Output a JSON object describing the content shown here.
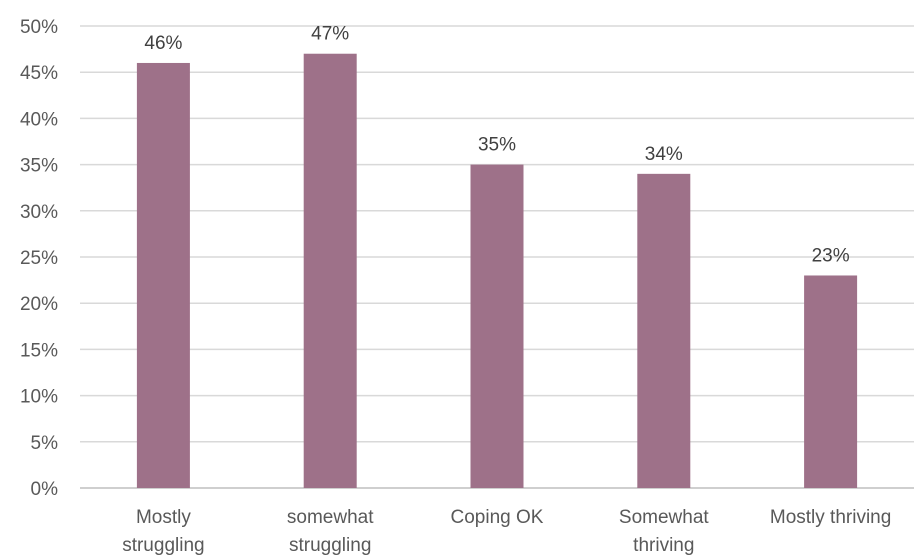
{
  "chart_data": {
    "type": "bar",
    "title": "",
    "xlabel": "",
    "ylabel": "",
    "categories": [
      [
        "Mostly",
        "struggling"
      ],
      [
        "somewhat",
        "struggling"
      ],
      [
        "Coping OK"
      ],
      [
        "Somewhat",
        "thriving"
      ],
      [
        "Mostly thriving"
      ]
    ],
    "values": [
      46,
      47,
      35,
      34,
      23
    ],
    "data_labels": [
      "46%",
      "47%",
      "35%",
      "34%",
      "23%"
    ],
    "ylim": [
      0,
      50
    ],
    "yticks": [
      0,
      5,
      10,
      15,
      20,
      25,
      30,
      35,
      40,
      45,
      50
    ],
    "ytick_labels": [
      "0%",
      "5%",
      "10%",
      "15%",
      "20%",
      "25%",
      "30%",
      "35%",
      "40%",
      "45%",
      "50%"
    ],
    "grid": true,
    "legend": "none",
    "bar_color": "#9e7189"
  }
}
